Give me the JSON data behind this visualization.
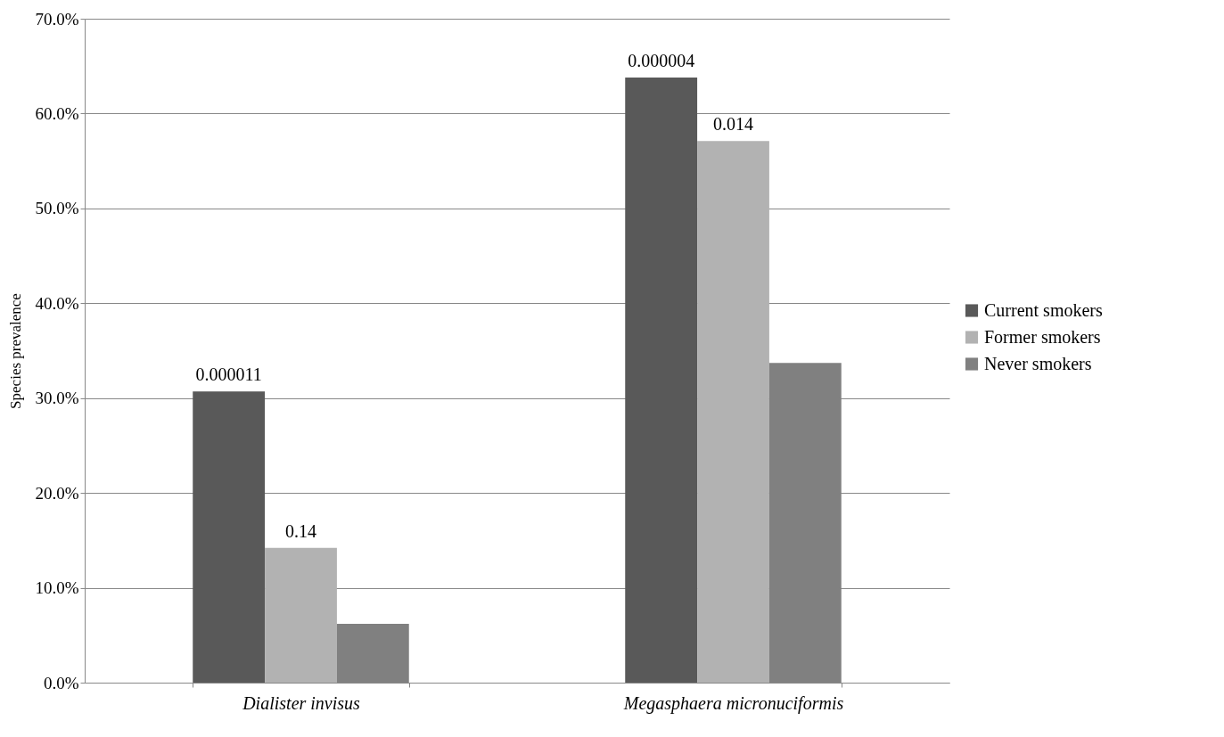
{
  "chart_data": {
    "type": "bar",
    "ylabel": "Species prevalence",
    "categories": [
      "Dialister invisus",
      "Megasphaera micronuciformis"
    ],
    "series": [
      {
        "name": "Current smokers",
        "color": "#595959",
        "values": [
          30.7,
          63.8
        ]
      },
      {
        "name": "Former smokers",
        "color": "#b2b2b2",
        "values": [
          14.2,
          57.1
        ]
      },
      {
        "name": "Never smokers",
        "color": "#808080",
        "values": [
          6.2,
          33.7
        ]
      }
    ],
    "annotations": [
      "0.000011",
      {
        "text": "0.14",
        "x": "Dialister invisus",
        "y": 14.2
      },
      "0.000004",
      {
        "text": "0.014",
        "x": "Megasphaera micronuciformis",
        "y": 57.1
      }
    ],
    "ylim": [
      0,
      70
    ],
    "yticks": [
      {
        "value": 0,
        "label": "0.0%"
      },
      {
        "value": 10,
        "label": "10.0%"
      },
      {
        "value": 20,
        "label": "20.0%"
      },
      {
        "value": 30,
        "label": "30.0%"
      },
      {
        "value": 40,
        "label": "40.0%"
      },
      {
        "value": 50,
        "label": "50.0%"
      },
      {
        "value": 60,
        "label": "60.0%"
      },
      {
        "value": 70,
        "label": "70.0%"
      }
    ],
    "grid": "y",
    "legend": "right"
  }
}
